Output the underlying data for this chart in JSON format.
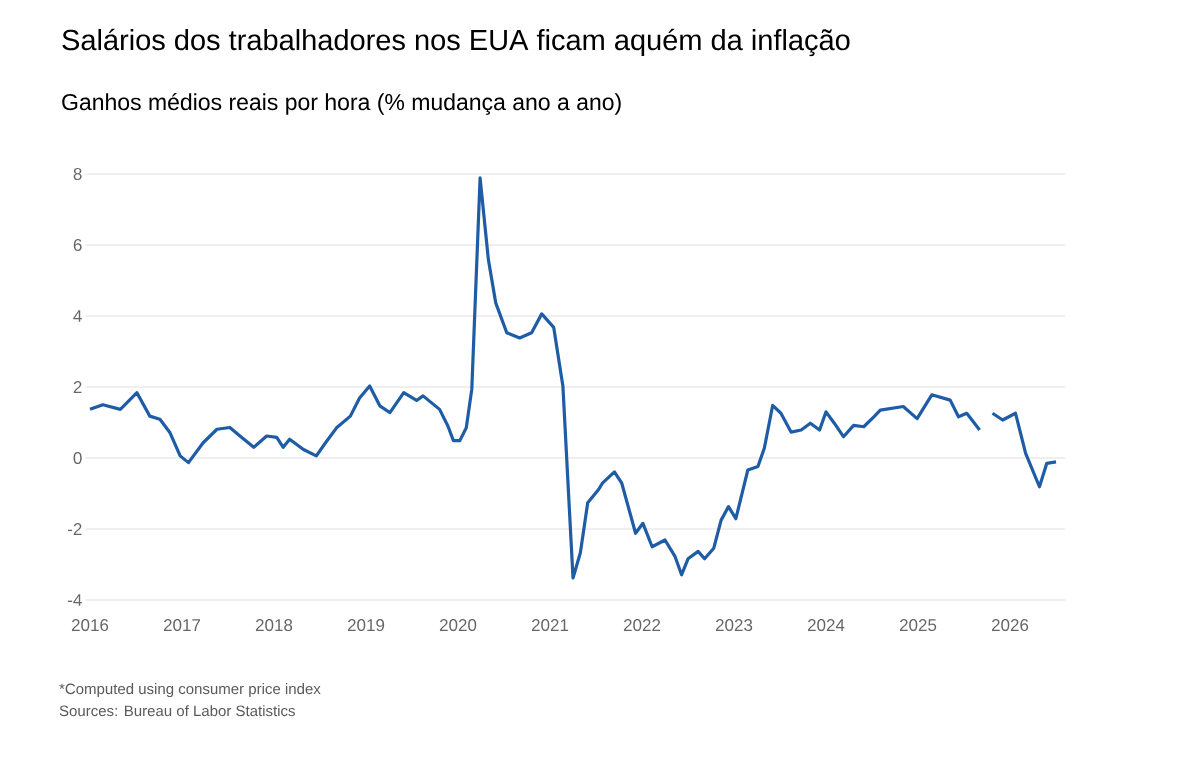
{
  "chart_data": {
    "type": "line",
    "title": "Salários dos trabalhadores nos EUA ficam aquém da inflação",
    "subtitle": "Ganhos médios reais por hora (% mudança ano a ano)",
    "annotations": [
      "*Computed using consumer price index",
      "Sources: Bureau of Labor Statistics"
    ],
    "x": [
      2016.0,
      2016.14,
      2016.33,
      2016.51,
      2016.65,
      2016.76,
      2016.87,
      2016.98,
      2017.07,
      2017.23,
      2017.38,
      2017.52,
      2017.63,
      2017.78,
      2017.92,
      2018.03,
      2018.1,
      2018.17,
      2018.32,
      2018.46,
      2018.56,
      2018.68,
      2018.83,
      2018.93,
      2019.04,
      2019.15,
      2019.26,
      2019.41,
      2019.55,
      2019.62,
      2019.8,
      2019.89,
      2019.95,
      2020.02,
      2020.09,
      2020.15,
      2020.24,
      2020.33,
      2020.41,
      2020.53,
      2020.67,
      2020.8,
      2020.91,
      2021.04,
      2021.14,
      2021.25,
      2021.33,
      2021.41,
      2021.53,
      2021.57,
      2021.7,
      2021.78,
      2021.93,
      2022.01,
      2022.11,
      2022.25,
      2022.36,
      2022.43,
      2022.5,
      2022.61,
      2022.68,
      2022.78,
      2022.86,
      2022.94,
      2023.02,
      2023.15,
      2023.26,
      2023.33,
      2023.42,
      2023.51,
      2023.62,
      2023.73,
      2023.83,
      2023.93,
      2024.0,
      2024.09,
      2024.19,
      2024.3,
      2024.41,
      2024.52,
      2024.59,
      2024.84,
      2024.99,
      2025.15,
      2025.35,
      2025.44,
      2025.53,
      2025.67,
      2025.74,
      2025.81,
      2025.92,
      2026.06,
      2026.17,
      2026.32,
      2026.4,
      2026.5
    ],
    "values": [
      1.37,
      1.5,
      1.37,
      1.84,
      1.18,
      1.09,
      0.71,
      0.06,
      -0.13,
      0.43,
      0.81,
      0.86,
      0.62,
      0.3,
      0.62,
      0.58,
      0.3,
      0.53,
      0.24,
      0.06,
      0.43,
      0.85,
      1.18,
      1.69,
      2.03,
      1.47,
      1.28,
      1.84,
      1.62,
      1.75,
      1.37,
      0.9,
      0.49,
      0.49,
      0.85,
      1.94,
      7.89,
      5.59,
      4.37,
      3.53,
      3.38,
      3.53,
      4.06,
      3.68,
      2.03,
      -3.38,
      -2.67,
      -1.26,
      -0.88,
      -0.71,
      -0.39,
      -0.71,
      -2.12,
      -1.84,
      -2.5,
      -2.31,
      -2.78,
      -3.29,
      -2.84,
      -2.63,
      -2.84,
      -2.54,
      -1.75,
      -1.37,
      -1.71,
      -0.34,
      -0.24,
      0.28,
      1.48,
      1.26,
      0.73,
      0.79,
      0.98,
      0.79,
      1.3,
      0.98,
      0.6,
      0.92,
      0.88,
      1.16,
      1.35,
      1.45,
      1.11,
      1.78,
      1.63,
      1.16,
      1.26,
      0.79,
      null,
      1.26,
      1.07,
      1.26,
      0.13,
      -0.81,
      -0.15,
      -0.11
    ],
    "color": "#1f5ca6",
    "xlim": [
      2015.95,
      2026.6
    ],
    "ylim": [
      -4,
      8
    ],
    "xticks": [
      2016,
      2017,
      2018,
      2019,
      2020,
      2021,
      2022,
      2023,
      2024,
      2025,
      2026
    ],
    "yticks": [
      -4,
      -2,
      0,
      2,
      4,
      6,
      8
    ],
    "grid": "y"
  }
}
